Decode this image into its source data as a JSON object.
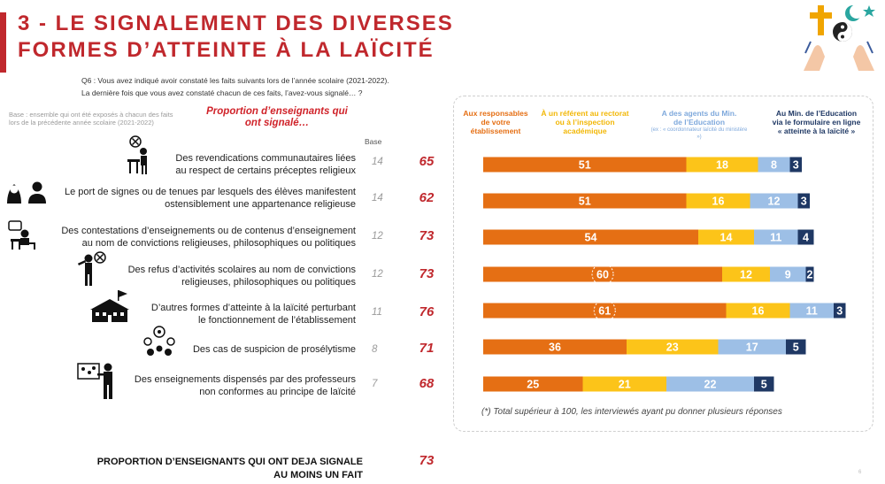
{
  "header": {
    "title_line1": "3 - LE SIGNALEMENT DES DIVERSES",
    "title_line2": "FORMES D’ATTEINTE À LA LAÏCITÉ",
    "question_line1": "Q6 : Vous avez indiqué avoir constaté les faits suivants lors de l’année scolaire (2021-2022).",
    "question_line2": "La dernière fois que vous avez constaté chacun de ces faits, l’avez-vous signalé… ?",
    "base_note": "Base : ensemble qui ont été exposés à chacun des faits lors de la précédente année scolaire (2021-2022)",
    "proportion_header": "Proportion d’enseignants qui ont signalé…",
    "base_header": "Base"
  },
  "colors": {
    "orange": "#e56f14",
    "yellow": "#fcc419",
    "lightblue": "#9dbfe6",
    "darkblue": "#1f3864",
    "red": "#c0282d"
  },
  "chart_data": {
    "type": "bar",
    "orientation": "horizontal",
    "stacked": true,
    "categories": [
      "Des revendications communautaires liées au respect de certains préceptes religieux",
      "Le port de signes ou de tenues par lesquels des élèves manifestent ostensiblement une appartenance religieuse",
      "Des contestations d’enseignements ou de contenus d’enseignement au nom de convictions religieuses, philosophiques ou politiques",
      "Des refus d’activités scolaires au nom de convictions religieuses, philosophiques ou politiques",
      "D’autres formes d’atteinte à la laïcité perturbant le fonctionnement de l’établissement",
      "Des cas de suspicion de prosélytisme",
      "Des enseignements dispensés par des professeurs non conformes au principe de laïcité"
    ],
    "bases": [
      14,
      14,
      12,
      12,
      11,
      8,
      7
    ],
    "proportions": [
      65,
      62,
      73,
      73,
      76,
      71,
      68
    ],
    "series": [
      {
        "name": "Aux responsables de votre établissement",
        "color": "#e56f14",
        "values": [
          51,
          51,
          54,
          60,
          61,
          36,
          25
        ]
      },
      {
        "name": "À un référent au rectorat ou à l’inspection académique",
        "color": "#fcc419",
        "values": [
          18,
          16,
          14,
          12,
          16,
          23,
          21
        ]
      },
      {
        "name": "A des agents du Min. de l’Education",
        "color": "#9dbfe6",
        "values": [
          8,
          12,
          11,
          9,
          11,
          17,
          22
        ]
      },
      {
        "name": "Au Min. de l’Education via le formulaire en ligne « atteinte à la laïcité »",
        "color": "#1f3864",
        "values": [
          3,
          3,
          4,
          2,
          3,
          5,
          5
        ]
      }
    ],
    "highlighted_values": [
      {
        "row": 3,
        "series": 0
      },
      {
        "row": 4,
        "series": 0
      }
    ],
    "footnote": "(*) Total supérieur à 100, les interviewés ayant pu donner plusieurs réponses"
  },
  "columns": {
    "col1": {
      "l1": "Aux responsables",
      "l2": "de votre",
      "l3": "établissement"
    },
    "col2": {
      "l1": "À un référent au rectorat",
      "l2": "ou à l’inspection",
      "l3": "académique"
    },
    "col3": {
      "l1": "A des agents du Min.",
      "l2": "de l’Education",
      "sub": "(ex : « coordonnateur laïcité du ministère »)"
    },
    "col4": {
      "l1": "Au Min. de l’Education",
      "l2": "via le formulaire en ligne",
      "l3": "« atteinte à la laïcité »"
    }
  },
  "rows": [
    {
      "l1": "Des revendications communautaires liées",
      "l2": "au respect de certains préceptes religieux",
      "icon": "person-at-desk-icon"
    },
    {
      "l1": "Le port de signes ou de tenues par lesquels des élèves manifestent",
      "l2": "ostensiblement une appartenance religieuse",
      "icon": "veiled-persons-icon"
    },
    {
      "l1": "Des contestations d’enseignements ou de contenus d’enseignement",
      "l2": "au nom de convictions religieuses, philosophiques ou politiques",
      "icon": "student-at-desk-icon"
    },
    {
      "l1": "Des refus d’activités scolaires au nom de convictions",
      "l2": "religieuses, philosophiques ou politiques",
      "icon": "refusing-person-icon"
    },
    {
      "l1": "D’autres formes d’atteinte à la laïcité perturbant",
      "l2": "le fonctionnement de l’établissement",
      "icon": "school-building-icon"
    },
    {
      "l1": "Des cas de suspicion de prosélytisme",
      "l2": "",
      "icon": "group-discussion-icon"
    },
    {
      "l1": "Des enseignements dispensés par des professeurs",
      "l2": "non conformes au principe de laïcité",
      "icon": "teacher-at-board-icon"
    }
  ],
  "footer": {
    "l1": "PROPORTION D’ENSEIGNANTS QUI ONT DEJA SIGNALE",
    "l2": "AU MOINS UN FAIT",
    "value": "73"
  },
  "logo_icon": "religious-symbols-hands-icon",
  "page_number": "6"
}
